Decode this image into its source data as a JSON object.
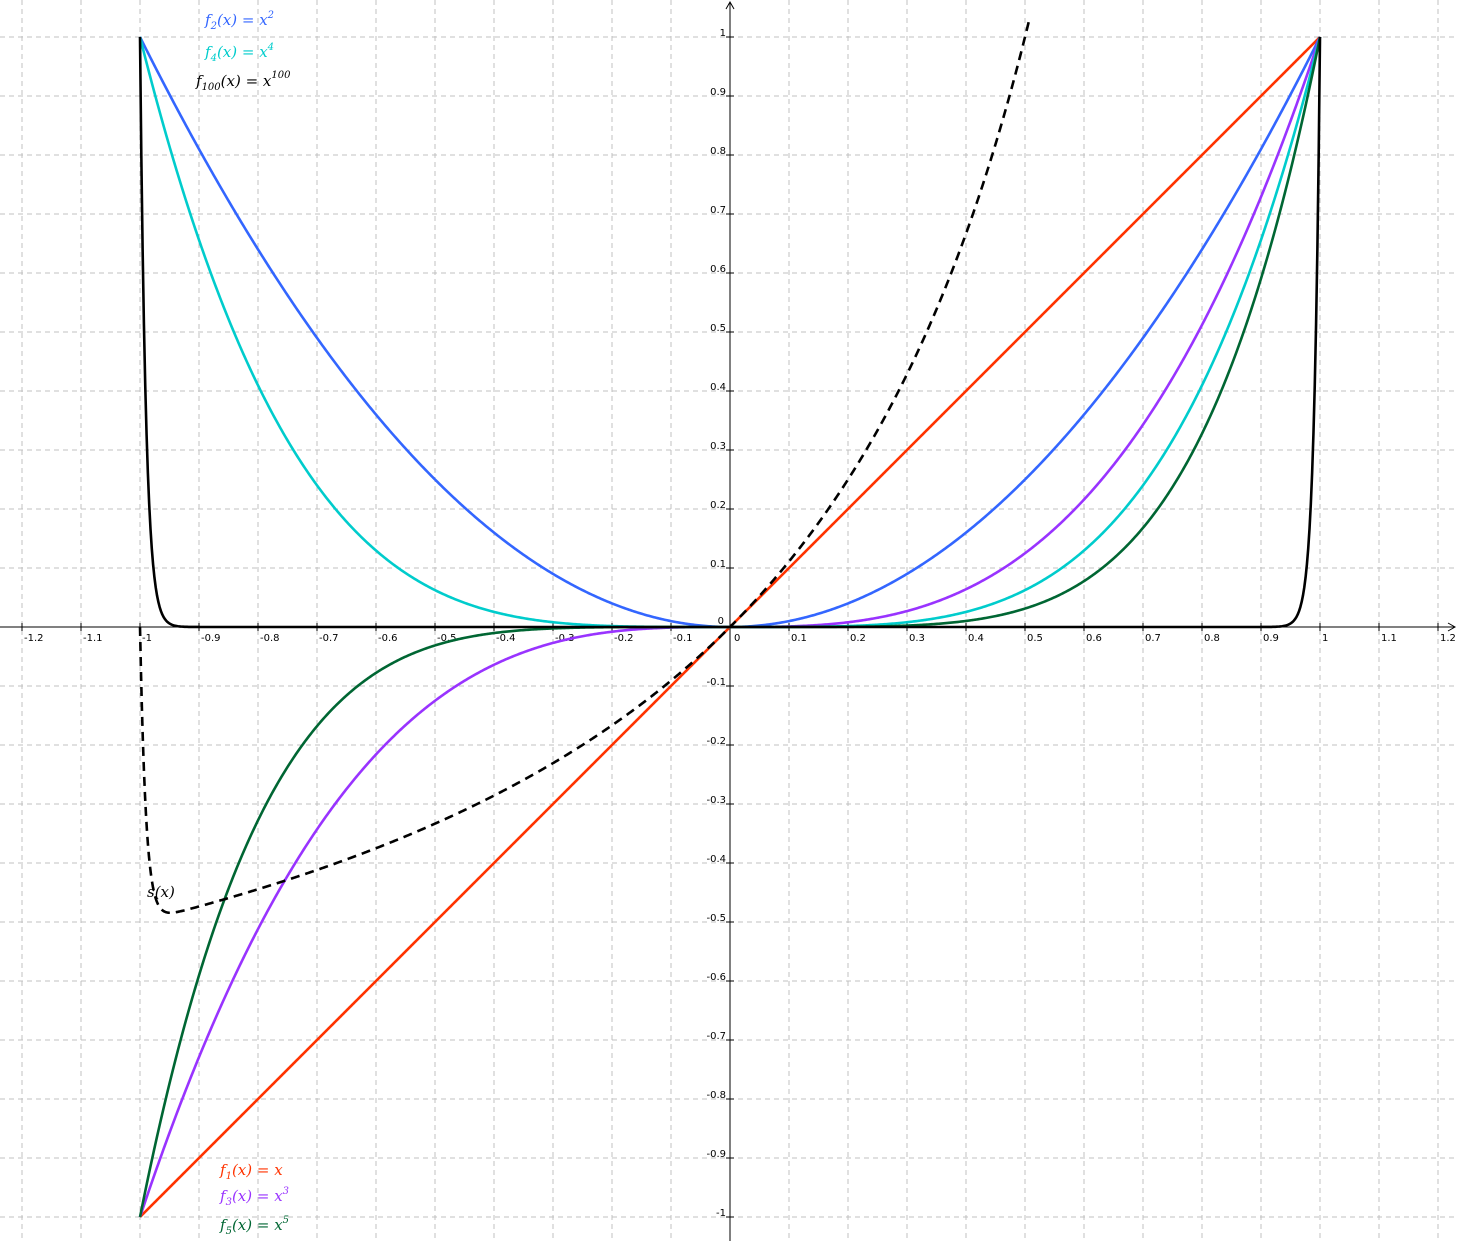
{
  "chart_data": {
    "type": "line",
    "title": "",
    "xlabel": "",
    "ylabel": "",
    "xlim": [
      -1.24,
      1.23
    ],
    "ylim": [
      -1.04,
      1.06
    ],
    "grid": true,
    "x_ticks": [
      "-1.2",
      "-1.1",
      "-1",
      "-0.9",
      "-0.8",
      "-0.7",
      "-0.6",
      "-0.5",
      "-0.4",
      "-0.3",
      "-0.2",
      "-0.1",
      "0",
      "0.1",
      "0.2",
      "0.3",
      "0.4",
      "0.5",
      "0.6",
      "0.7",
      "0.8",
      "0.9",
      "1",
      "1.1",
      "1.2"
    ],
    "y_ticks": [
      "-1",
      "-0.9",
      "-0.8",
      "-0.7",
      "-0.6",
      "-0.5",
      "-0.4",
      "-0.3",
      "-0.2",
      "-0.1",
      "0.1",
      "0.2",
      "0.3",
      "0.4",
      "0.5",
      "0.6",
      "0.7",
      "0.8",
      "0.9",
      "1"
    ],
    "series": [
      {
        "key": "f1",
        "name": "f₁(x) = x",
        "fn": "power",
        "exponent": 1,
        "domain": [
          -1,
          1
        ],
        "color": "#ff3300",
        "dashed": false
      },
      {
        "key": "f2",
        "name": "f₂(x) = x²",
        "fn": "power",
        "exponent": 2,
        "domain": [
          -1,
          1
        ],
        "color": "#3366ff",
        "dashed": false
      },
      {
        "key": "f3",
        "name": "f₃(x) = x³",
        "fn": "power",
        "exponent": 3,
        "domain": [
          -1,
          1
        ],
        "color": "#9933ff",
        "dashed": false
      },
      {
        "key": "f4",
        "name": "f₄(x) = x⁴",
        "fn": "power",
        "exponent": 4,
        "domain": [
          -1,
          1
        ],
        "color": "#00cccc",
        "dashed": false
      },
      {
        "key": "f5",
        "name": "f₅(x) = x⁵",
        "fn": "power",
        "exponent": 5,
        "domain": [
          -1,
          1
        ],
        "color": "#006633",
        "dashed": false
      },
      {
        "key": "f100",
        "name": "f₁₀₀(x) = x¹⁰⁰",
        "fn": "power",
        "exponent": 100,
        "domain": [
          -1,
          1
        ],
        "color": "#000000",
        "dashed": false
      },
      {
        "key": "s",
        "name": "s(x)",
        "fn": "sum_of_powers",
        "domain": [
          -1,
          0.507
        ],
        "color": "#000000",
        "dashed": true
      }
    ]
  },
  "labels": {
    "f2": {
      "f": "f",
      "sub": "2",
      "mid": "(x) = x",
      "sup": "2",
      "color": "#3366ff"
    },
    "f4": {
      "f": "f",
      "sub": "4",
      "mid": "(x) = x",
      "sup": "4",
      "color": "#00cccc"
    },
    "f100": {
      "f": "f",
      "sub": "100",
      "mid": "(x) = x",
      "sup": "100",
      "color": "#000000"
    },
    "f1": {
      "f": "f",
      "sub": "1",
      "mid": "(x) = x",
      "sup": "",
      "color": "#ff3300"
    },
    "f3": {
      "f": "f",
      "sub": "3",
      "mid": "(x) = x",
      "sup": "3",
      "color": "#9933ff"
    },
    "f5": {
      "f": "f",
      "sub": "5",
      "mid": "(x) = x",
      "sup": "5",
      "color": "#006633"
    },
    "s": {
      "text": "s(x)",
      "color": "#000000"
    }
  }
}
